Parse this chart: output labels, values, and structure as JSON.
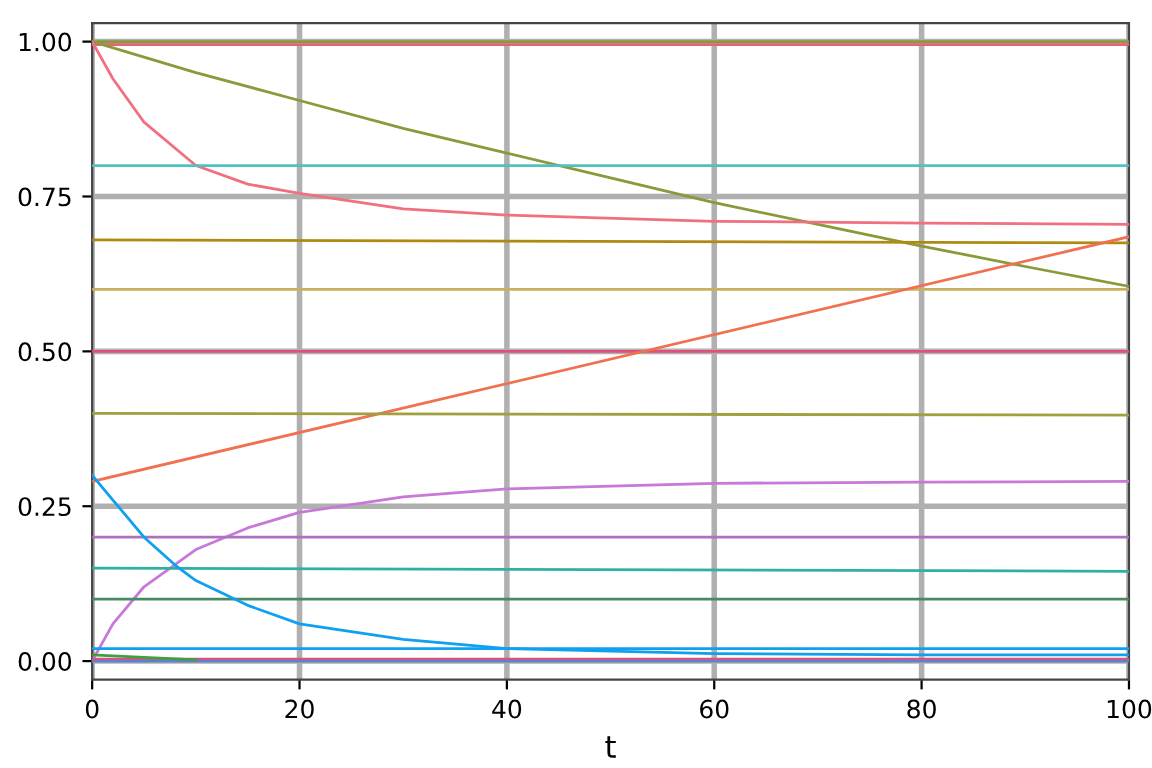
{
  "chart_data": {
    "type": "line",
    "xlabel": "t",
    "xlim": [
      0,
      100
    ],
    "ylim": [
      -0.03,
      1.03
    ],
    "xticks": [
      0,
      20,
      40,
      60,
      80,
      100
    ],
    "yticks": [
      {
        "value": 0,
        "label": "0.00"
      },
      {
        "value": 0.25,
        "label": "0.25"
      },
      {
        "value": 0.5,
        "label": "0.50"
      },
      {
        "value": 0.75,
        "label": "0.75"
      },
      {
        "value": 1,
        "label": "1.00"
      }
    ],
    "grid": true,
    "line_style": "solid",
    "marker": "none",
    "series": [
      {
        "color": "#8a9a3a",
        "x": [
          0,
          100
        ],
        "values": [
          1.0,
          1.0
        ]
      },
      {
        "color": "#e8607a",
        "x": [
          0,
          100
        ],
        "values": [
          0.995,
          0.995
        ]
      },
      {
        "color": "#8a9a3a",
        "x": [
          0,
          10,
          20,
          30,
          40,
          50,
          60,
          70,
          80,
          90,
          100
        ],
        "values": [
          1.0,
          0.95,
          0.905,
          0.86,
          0.82,
          0.78,
          0.74,
          0.705,
          0.67,
          0.637,
          0.605
        ]
      },
      {
        "color": "#f07080",
        "x": [
          0,
          2,
          5,
          10,
          15,
          20,
          30,
          40,
          60,
          80,
          100
        ],
        "values": [
          1.0,
          0.94,
          0.87,
          0.8,
          0.77,
          0.755,
          0.73,
          0.72,
          0.71,
          0.707,
          0.705
        ]
      },
      {
        "color": "#50c0c0",
        "x": [
          0,
          100
        ],
        "values": [
          0.8,
          0.8
        ]
      },
      {
        "color": "#b08a10",
        "x": [
          0,
          100
        ],
        "values": [
          0.68,
          0.675
        ]
      },
      {
        "color": "#c8b060",
        "x": [
          0,
          100
        ],
        "values": [
          0.6,
          0.6
        ]
      },
      {
        "color": "#e0507a",
        "x": [
          0,
          100
        ],
        "values": [
          0.5,
          0.5
        ]
      },
      {
        "color": "#f07050",
        "x": [
          0,
          100
        ],
        "values": [
          0.29,
          0.685
        ]
      },
      {
        "color": "#a0a040",
        "x": [
          0,
          100
        ],
        "values": [
          0.4,
          0.397
        ]
      },
      {
        "color": "#c878d8",
        "x": [
          0,
          2,
          5,
          10,
          15,
          20,
          30,
          40,
          60,
          80,
          100
        ],
        "values": [
          0.0,
          0.06,
          0.12,
          0.18,
          0.215,
          0.24,
          0.265,
          0.278,
          0.287,
          0.289,
          0.29
        ]
      },
      {
        "color": "#b070c0",
        "x": [
          0,
          100
        ],
        "values": [
          0.2,
          0.2
        ]
      },
      {
        "color": "#30b0a0",
        "x": [
          0,
          100
        ],
        "values": [
          0.15,
          0.145
        ]
      },
      {
        "color": "#4a8a60",
        "x": [
          0,
          100
        ],
        "values": [
          0.1,
          0.1
        ]
      },
      {
        "color": "#10a0f0",
        "x": [
          0,
          2,
          5,
          8,
          10,
          15,
          20,
          30,
          40,
          60,
          80,
          100
        ],
        "values": [
          0.3,
          0.26,
          0.2,
          0.155,
          0.13,
          0.09,
          0.06,
          0.035,
          0.02,
          0.012,
          0.01,
          0.01
        ]
      },
      {
        "color": "#10a0f0",
        "x": [
          0,
          100
        ],
        "values": [
          0.02,
          0.02
        ]
      },
      {
        "color": "#e0507a",
        "x": [
          0,
          100
        ],
        "values": [
          0.003,
          0.003
        ]
      },
      {
        "color": "#6080d0",
        "x": [
          0,
          100
        ],
        "values": [
          0.0,
          0.0
        ]
      },
      {
        "color": "#40a040",
        "x": [
          0,
          5,
          10
        ],
        "values": [
          0.01,
          0.006,
          0.002
        ]
      }
    ]
  }
}
